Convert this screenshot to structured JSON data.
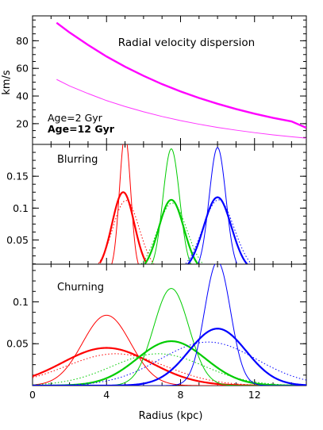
{
  "chart_data": [
    {
      "type": "line",
      "title": "Radial velocity dispersion",
      "ylabel": "km/s",
      "xlim": [
        0,
        14.8
      ],
      "ylim": [
        5,
        98
      ],
      "yticks": [
        20,
        40,
        60,
        80
      ],
      "series": [
        {
          "name": "Age=2  Gyr",
          "color": "#ff33ff",
          "width": 1,
          "x": [
            1.3,
            2,
            3,
            4,
            5,
            6,
            7,
            8,
            9,
            10,
            11,
            12,
            13,
            14,
            14.8
          ],
          "y": [
            52,
            47.3,
            41.8,
            36.7,
            32.4,
            28.6,
            25.2,
            22.2,
            19.6,
            17.3,
            15.3,
            13.5,
            11.9,
            10.5,
            9.5
          ]
        },
        {
          "name": "Age=12 Gyr",
          "color": "#ff00ff",
          "width": 2.4,
          "x": [
            1.3,
            2,
            3,
            4,
            5,
            6,
            7,
            8,
            9,
            10,
            11,
            12,
            13,
            14,
            14.8
          ],
          "y": [
            93,
            86,
            77,
            68.6,
            61.2,
            54.6,
            48.6,
            43.3,
            38.6,
            34.4,
            30.6,
            27.2,
            24.2,
            21.6,
            17
          ]
        }
      ],
      "legend": [
        {
          "text": "Age=2  Gyr",
          "color": "#ff33ff",
          "bold": false
        },
        {
          "text": "Age=12 Gyr",
          "color": "#ff00ff",
          "bold": true
        }
      ]
    },
    {
      "type": "line",
      "title": "Blurring",
      "xlim": [
        0,
        14.8
      ],
      "ylim": [
        0.012,
        0.2
      ],
      "yticks": [
        0.05,
        0.1,
        0.15
      ],
      "yticklabels": [
        "0.05",
        "0.1",
        "0.15"
      ],
      "series": [
        {
          "color": "#ff0000",
          "style": "thin",
          "mu": 5,
          "sigma": 0.3,
          "amp": 0.215
        },
        {
          "color": "#ff0000",
          "style": "thick",
          "mu": 4.9,
          "sigma": 0.6,
          "amp": 0.125
        },
        {
          "color": "#ff0000",
          "style": "dotted",
          "mu": 5.05,
          "sigma": 0.72,
          "amp": 0.112
        },
        {
          "color": "#00cc00",
          "style": "thin",
          "mu": 7.5,
          "sigma": 0.45,
          "amp": 0.193
        },
        {
          "color": "#00cc00",
          "style": "thick",
          "mu": 7.5,
          "sigma": 0.68,
          "amp": 0.113
        },
        {
          "color": "#00cc00",
          "style": "dotted",
          "mu": 7.55,
          "sigma": 0.8,
          "amp": 0.108
        },
        {
          "color": "#0000ff",
          "style": "thin",
          "mu": 10,
          "sigma": 0.45,
          "amp": 0.195
        },
        {
          "color": "#0000ff",
          "style": "thick",
          "mu": 10,
          "sigma": 0.75,
          "amp": 0.117
        },
        {
          "color": "#0000ff",
          "style": "dotted",
          "mu": 10.05,
          "sigma": 0.85,
          "amp": 0.113
        }
      ]
    },
    {
      "type": "line",
      "title": "Churning",
      "xlabel": "Radius (kpc)",
      "xlim": [
        0,
        14.8
      ],
      "xticks": [
        0,
        4,
        8,
        12
      ],
      "ylim": [
        0,
        0.145
      ],
      "yticks": [
        0.05,
        0.1
      ],
      "yticklabels": [
        "0.05",
        "0.1"
      ],
      "series": [
        {
          "color": "#ff0000",
          "style": "thin",
          "mu": 4,
          "sigma": 1.3,
          "amp": 0.084
        },
        {
          "color": "#ff0000",
          "style": "thick",
          "mu": 4,
          "sigma": 2.4,
          "amp": 0.045
        },
        {
          "color": "#ff0000",
          "style": "dotted",
          "mu": 4.5,
          "sigma": 2.7,
          "amp": 0.038
        },
        {
          "color": "#00cc00",
          "style": "thin",
          "mu": 7.5,
          "sigma": 0.95,
          "amp": 0.116
        },
        {
          "color": "#00cc00",
          "style": "thick",
          "mu": 7.5,
          "sigma": 1.85,
          "amp": 0.053
        },
        {
          "color": "#00cc00",
          "style": "dotted",
          "mu": 6.8,
          "sigma": 2.5,
          "amp": 0.038
        },
        {
          "color": "#0000ff",
          "style": "thin",
          "mu": 10,
          "sigma": 0.7,
          "amp": 0.148
        },
        {
          "color": "#0000ff",
          "style": "thick",
          "mu": 10,
          "sigma": 1.55,
          "amp": 0.068
        },
        {
          "color": "#0000ff",
          "style": "dotted",
          "mu": 9.5,
          "sigma": 2.6,
          "amp": 0.052
        }
      ]
    }
  ]
}
